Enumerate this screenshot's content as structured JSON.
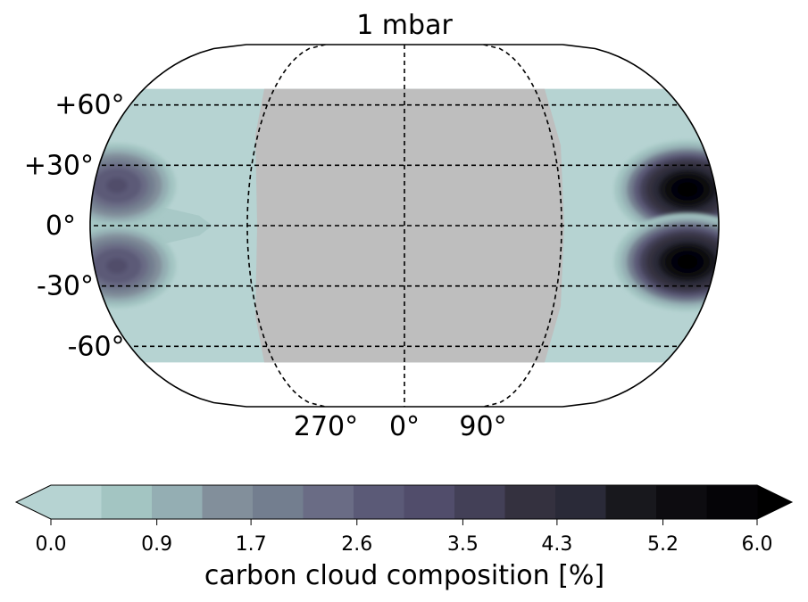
{
  "chart_data": {
    "type": "heatmap",
    "projection": "Robinson-like global map",
    "title": "1 mbar",
    "latitude_ticks": [
      "+60°",
      "+30°",
      "0°",
      "-30°",
      "-60°"
    ],
    "latitude_values": [
      60,
      30,
      0,
      -30,
      -60
    ],
    "longitude_ticks": [
      "270°",
      "0°",
      "90°"
    ],
    "longitude_values": [
      270,
      0,
      90
    ],
    "gridlines": "dashed",
    "masked_color": "#bebebe",
    "colorbar": {
      "label": "carbon cloud composition [%]",
      "ticks": [
        "0.0",
        "0.9",
        "1.7",
        "2.6",
        "3.5",
        "4.3",
        "5.2",
        "6.0"
      ],
      "tick_values": [
        0.0,
        0.9,
        1.7,
        2.6,
        3.5,
        4.3,
        5.2,
        6.0
      ],
      "range": [
        0,
        6
      ],
      "extend": "both",
      "colors": [
        "#b6d3d2",
        "#a3c5c2",
        "#94aeb3",
        "#828f9b",
        "#737e8f",
        "#6a6c85",
        "#5b5a77",
        "#514d6b",
        "#434057",
        "#34313f",
        "#2a2a38",
        "#18181d",
        "#0d0c10",
        "#050407",
        "#000000"
      ]
    },
    "features": [
      {
        "name": "west-limb enhancement",
        "lat_centers": [
          20,
          -20
        ],
        "peak_percent": 3.3
      },
      {
        "name": "east-limb enhancement",
        "lat_centers": [
          18,
          -18
        ],
        "peak_percent": 6.0
      }
    ]
  }
}
